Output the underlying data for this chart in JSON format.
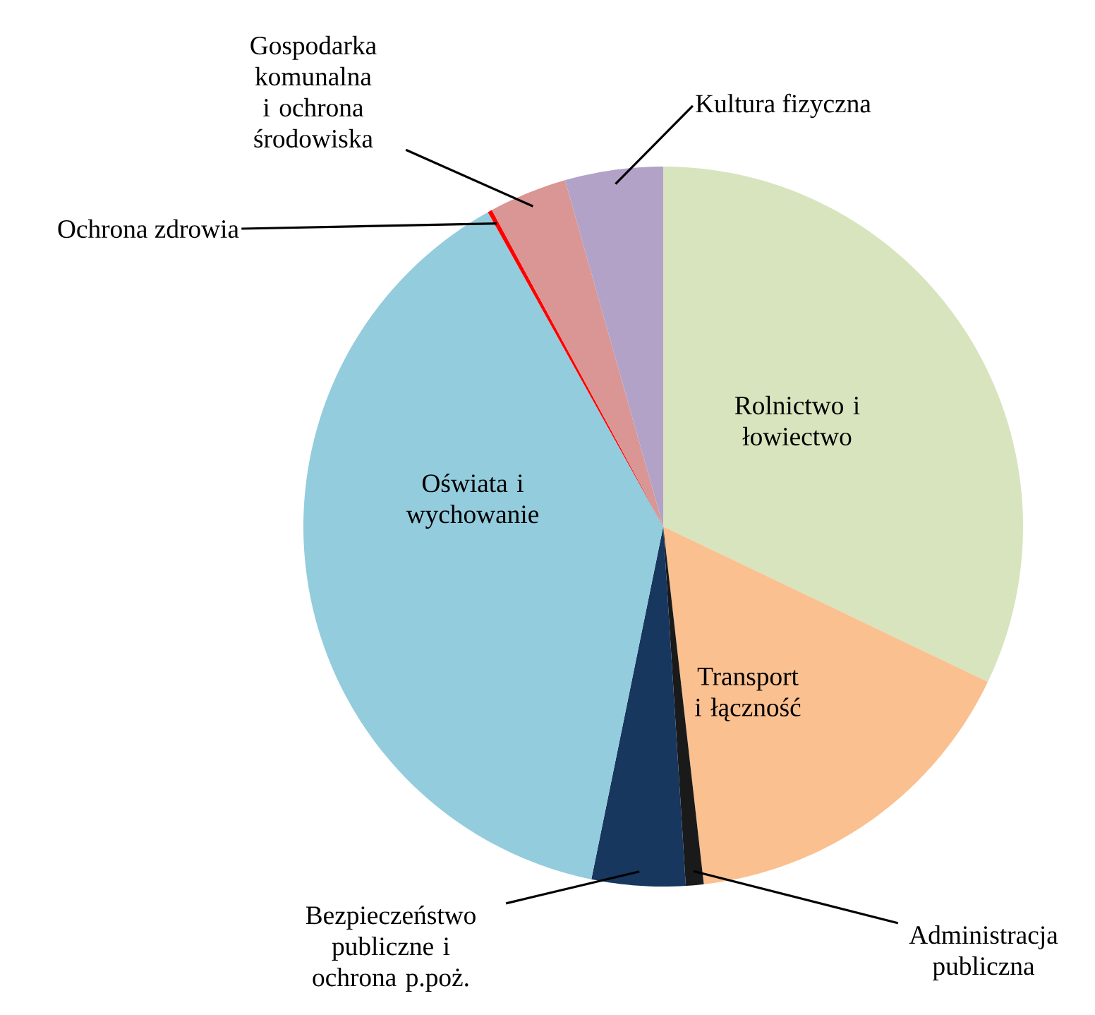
{
  "chart_data": {
    "type": "pie",
    "categories": [
      "Rolnictwo i łowiectwo",
      "Transport i łączność",
      "Administracja publiczna",
      "Bezpieczeństwo publiczne i ochrona p.poż.",
      "Oświata i wychowanie",
      "Ochrona zdrowia",
      "Gospodarka komunalna i ochrona środowiska",
      "Kultura fizyczna"
    ],
    "values": [
      32.1,
      16.1,
      0.8,
      4.2,
      38.7,
      0.2,
      3.5,
      4.4
    ],
    "colors": [
      "#d7e4bd",
      "#fac090",
      "#1a1a1a",
      "#17375e",
      "#93cddd",
      "#ff0000",
      "#d99694",
      "#b3a2c7"
    ]
  }
}
